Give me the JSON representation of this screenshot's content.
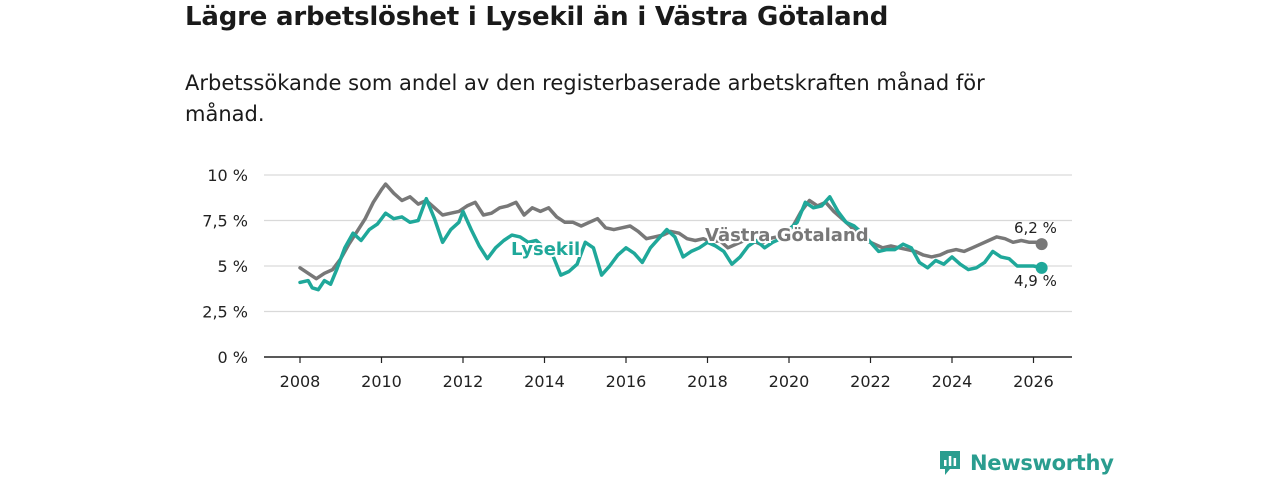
{
  "chart_data": {
    "type": "line",
    "title": "Lägre arbetslöshet i Lysekil än i Västra Götaland",
    "subtitle": "Arbetssökande som andel av den registerbaserade arbetskraften månad för månad.",
    "xlabel": "",
    "ylabel": "",
    "xlim": [
      2007.5,
      2026.6
    ],
    "ylim": [
      0,
      10
    ],
    "y_ticks": [
      0,
      2.5,
      5,
      7.5,
      10
    ],
    "y_tick_labels": [
      "0 %",
      "2,5 %",
      "5 %",
      "7,5 %",
      "10 %"
    ],
    "x_ticks": [
      2008,
      2010,
      2012,
      2014,
      2016,
      2018,
      2020,
      2022,
      2024,
      2026
    ],
    "x_tick_labels": [
      "2008",
      "2010",
      "2012",
      "2014",
      "2016",
      "2018",
      "2020",
      "2022",
      "2024",
      "2026"
    ],
    "grid": true,
    "series": [
      {
        "name": "Västra Götaland",
        "color": "#787878",
        "end_label": "6,2 %",
        "points": [
          [
            2008.0,
            4.9
          ],
          [
            2008.2,
            4.6
          ],
          [
            2008.4,
            4.3
          ],
          [
            2008.6,
            4.6
          ],
          [
            2008.8,
            4.8
          ],
          [
            2009.0,
            5.4
          ],
          [
            2009.2,
            6.2
          ],
          [
            2009.4,
            6.9
          ],
          [
            2009.6,
            7.6
          ],
          [
            2009.8,
            8.5
          ],
          [
            2010.0,
            9.2
          ],
          [
            2010.1,
            9.5
          ],
          [
            2010.3,
            9.0
          ],
          [
            2010.5,
            8.6
          ],
          [
            2010.7,
            8.8
          ],
          [
            2010.9,
            8.4
          ],
          [
            2011.1,
            8.6
          ],
          [
            2011.3,
            8.2
          ],
          [
            2011.5,
            7.8
          ],
          [
            2011.7,
            7.9
          ],
          [
            2011.9,
            8.0
          ],
          [
            2012.1,
            8.3
          ],
          [
            2012.3,
            8.5
          ],
          [
            2012.5,
            7.8
          ],
          [
            2012.7,
            7.9
          ],
          [
            2012.9,
            8.2
          ],
          [
            2013.1,
            8.3
          ],
          [
            2013.3,
            8.5
          ],
          [
            2013.5,
            7.8
          ],
          [
            2013.7,
            8.2
          ],
          [
            2013.9,
            8.0
          ],
          [
            2014.1,
            8.2
          ],
          [
            2014.3,
            7.7
          ],
          [
            2014.5,
            7.4
          ],
          [
            2014.7,
            7.4
          ],
          [
            2014.9,
            7.2
          ],
          [
            2015.1,
            7.4
          ],
          [
            2015.3,
            7.6
          ],
          [
            2015.5,
            7.1
          ],
          [
            2015.7,
            7.0
          ],
          [
            2015.9,
            7.1
          ],
          [
            2016.1,
            7.2
          ],
          [
            2016.3,
            6.9
          ],
          [
            2016.5,
            6.5
          ],
          [
            2016.7,
            6.6
          ],
          [
            2016.9,
            6.7
          ],
          [
            2017.1,
            6.9
          ],
          [
            2017.3,
            6.8
          ],
          [
            2017.5,
            6.5
          ],
          [
            2017.7,
            6.4
          ],
          [
            2017.9,
            6.5
          ],
          [
            2018.1,
            6.3
          ],
          [
            2018.3,
            6.4
          ],
          [
            2018.5,
            6.0
          ],
          [
            2018.7,
            6.2
          ],
          [
            2018.9,
            6.4
          ],
          [
            2019.1,
            6.4
          ],
          [
            2019.3,
            6.2
          ],
          [
            2019.5,
            6.5
          ],
          [
            2019.7,
            6.6
          ],
          [
            2019.9,
            6.8
          ],
          [
            2020.1,
            7.2
          ],
          [
            2020.3,
            8.0
          ],
          [
            2020.5,
            8.6
          ],
          [
            2020.7,
            8.3
          ],
          [
            2020.9,
            8.5
          ],
          [
            2021.1,
            8.0
          ],
          [
            2021.3,
            7.6
          ],
          [
            2021.5,
            7.2
          ],
          [
            2021.7,
            6.7
          ],
          [
            2021.9,
            6.4
          ],
          [
            2022.1,
            6.2
          ],
          [
            2022.3,
            6.0
          ],
          [
            2022.5,
            6.1
          ],
          [
            2022.7,
            6.0
          ],
          [
            2022.9,
            5.9
          ],
          [
            2023.1,
            5.8
          ],
          [
            2023.3,
            5.6
          ],
          [
            2023.5,
            5.5
          ],
          [
            2023.7,
            5.6
          ],
          [
            2023.9,
            5.8
          ],
          [
            2024.1,
            5.9
          ],
          [
            2024.3,
            5.8
          ],
          [
            2024.5,
            6.0
          ],
          [
            2024.7,
            6.2
          ],
          [
            2024.9,
            6.4
          ],
          [
            2025.1,
            6.6
          ],
          [
            2025.3,
            6.5
          ],
          [
            2025.5,
            6.3
          ],
          [
            2025.7,
            6.4
          ],
          [
            2025.9,
            6.3
          ],
          [
            2026.1,
            6.3
          ],
          [
            2026.2,
            6.2
          ]
        ]
      },
      {
        "name": "Lysekil",
        "color": "#1fa89a",
        "end_label": "4,9 %",
        "points": [
          [
            2008.0,
            4.1
          ],
          [
            2008.2,
            4.2
          ],
          [
            2008.3,
            3.8
          ],
          [
            2008.45,
            3.7
          ],
          [
            2008.6,
            4.2
          ],
          [
            2008.75,
            4.0
          ],
          [
            2008.9,
            4.8
          ],
          [
            2009.1,
            6.0
          ],
          [
            2009.3,
            6.8
          ],
          [
            2009.5,
            6.4
          ],
          [
            2009.7,
            7.0
          ],
          [
            2009.9,
            7.3
          ],
          [
            2010.1,
            7.9
          ],
          [
            2010.3,
            7.6
          ],
          [
            2010.5,
            7.7
          ],
          [
            2010.7,
            7.4
          ],
          [
            2010.9,
            7.5
          ],
          [
            2011.1,
            8.7
          ],
          [
            2011.3,
            7.6
          ],
          [
            2011.5,
            6.3
          ],
          [
            2011.7,
            7.0
          ],
          [
            2011.9,
            7.4
          ],
          [
            2012.0,
            8.0
          ],
          [
            2012.2,
            7.0
          ],
          [
            2012.4,
            6.1
          ],
          [
            2012.6,
            5.4
          ],
          [
            2012.8,
            6.0
          ],
          [
            2013.0,
            6.4
          ],
          [
            2013.2,
            6.7
          ],
          [
            2013.4,
            6.6
          ],
          [
            2013.6,
            6.3
          ],
          [
            2013.8,
            6.4
          ],
          [
            2014.0,
            6.0
          ],
          [
            2014.2,
            5.6
          ],
          [
            2014.4,
            4.5
          ],
          [
            2014.6,
            4.7
          ],
          [
            2014.8,
            5.1
          ],
          [
            2015.0,
            6.3
          ],
          [
            2015.2,
            6.0
          ],
          [
            2015.4,
            4.5
          ],
          [
            2015.6,
            5.0
          ],
          [
            2015.8,
            5.6
          ],
          [
            2016.0,
            6.0
          ],
          [
            2016.2,
            5.7
          ],
          [
            2016.4,
            5.2
          ],
          [
            2016.6,
            6.0
          ],
          [
            2016.8,
            6.5
          ],
          [
            2017.0,
            7.0
          ],
          [
            2017.2,
            6.6
          ],
          [
            2017.4,
            5.5
          ],
          [
            2017.6,
            5.8
          ],
          [
            2017.8,
            6.0
          ],
          [
            2018.0,
            6.3
          ],
          [
            2018.2,
            6.1
          ],
          [
            2018.4,
            5.8
          ],
          [
            2018.6,
            5.1
          ],
          [
            2018.8,
            5.5
          ],
          [
            2019.0,
            6.1
          ],
          [
            2019.2,
            6.4
          ],
          [
            2019.4,
            6.0
          ],
          [
            2019.6,
            6.3
          ],
          [
            2019.8,
            6.5
          ],
          [
            2020.0,
            7.0
          ],
          [
            2020.2,
            7.4
          ],
          [
            2020.4,
            8.5
          ],
          [
            2020.6,
            8.2
          ],
          [
            2020.8,
            8.3
          ],
          [
            2021.0,
            8.8
          ],
          [
            2021.2,
            8.0
          ],
          [
            2021.4,
            7.4
          ],
          [
            2021.6,
            7.2
          ],
          [
            2021.8,
            6.8
          ],
          [
            2022.0,
            6.3
          ],
          [
            2022.2,
            5.8
          ],
          [
            2022.4,
            5.9
          ],
          [
            2022.6,
            5.9
          ],
          [
            2022.8,
            6.2
          ],
          [
            2023.0,
            6.0
          ],
          [
            2023.2,
            5.2
          ],
          [
            2023.4,
            4.9
          ],
          [
            2023.6,
            5.3
          ],
          [
            2023.8,
            5.1
          ],
          [
            2024.0,
            5.5
          ],
          [
            2024.2,
            5.1
          ],
          [
            2024.4,
            4.8
          ],
          [
            2024.6,
            4.9
          ],
          [
            2024.8,
            5.2
          ],
          [
            2025.0,
            5.8
          ],
          [
            2025.2,
            5.5
          ],
          [
            2025.4,
            5.4
          ],
          [
            2025.6,
            5.0
          ],
          [
            2025.8,
            5.0
          ],
          [
            2026.0,
            5.0
          ],
          [
            2026.2,
            4.9
          ]
        ]
      }
    ]
  },
  "labels": {
    "vg": "Västra Götaland",
    "lysekil": "Lysekil"
  },
  "brand": {
    "name": "Newsworthy",
    "color": "#2a9d8f",
    "icon": "newsworthy-logo-icon"
  }
}
